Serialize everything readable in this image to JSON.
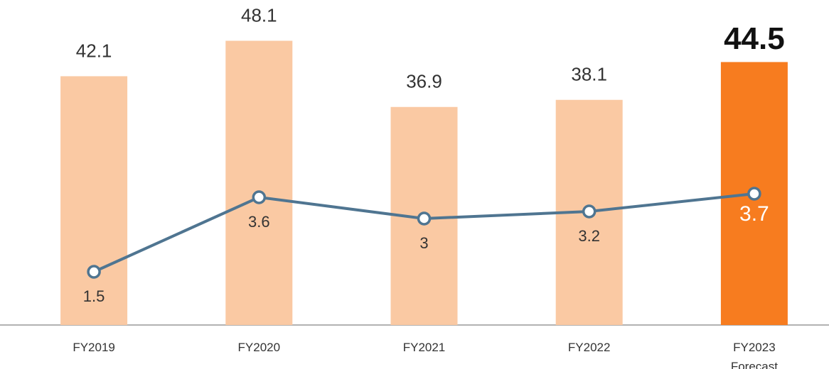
{
  "chart_data": {
    "type": "bar-line",
    "categories": [
      "FY2019",
      "FY2020",
      "FY2021",
      "FY2022",
      "FY2023\nForecast"
    ],
    "series": [
      {
        "type": "bar",
        "color": "#fac9a3",
        "colors": [
          "#fac9a3",
          "#fac9a3",
          "#fac9a3",
          "#fac9a3",
          "#f77c1f"
        ],
        "values": [
          42.1,
          48.1,
          36.9,
          38.1,
          44.5
        ]
      },
      {
        "type": "line",
        "axis": "y2",
        "color": "#4f7591",
        "values": [
          1.5,
          3.6,
          3.0,
          3.2,
          3.7
        ]
      }
    ],
    "ylim": [
      0,
      55
    ],
    "y2lim": [
      0,
      9.16
    ],
    "grid": false
  }
}
